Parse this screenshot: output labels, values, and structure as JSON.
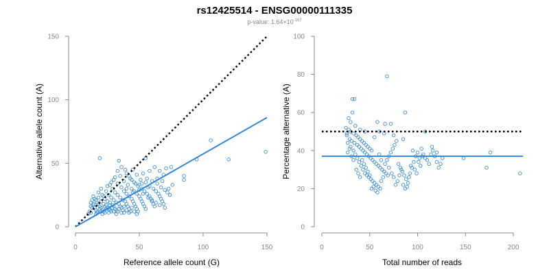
{
  "chart_data": [
    {
      "type": "scatter",
      "title": "rs12425514 - ENSG00000111335",
      "subtitle_prefix": "p-value: 1.64×10",
      "subtitle_exponent": "-167",
      "xlabel": "Reference allele count (G)",
      "ylabel": "Alternative allele count (A)",
      "xlim": [
        0,
        150
      ],
      "ylim": [
        0,
        150
      ],
      "xticks": [
        0,
        50,
        100,
        150
      ],
      "yticks": [
        0,
        50,
        100,
        150
      ],
      "reference_line": {
        "style": "dotted",
        "x": [
          0,
          150
        ],
        "y": [
          0,
          150
        ]
      },
      "fit_line": {
        "x": [
          0,
          150
        ],
        "y": [
          0,
          86
        ]
      },
      "points": [
        [
          12,
          11
        ],
        [
          13,
          21
        ],
        [
          12,
          19
        ],
        [
          14,
          17
        ],
        [
          15,
          15
        ],
        [
          16,
          13
        ],
        [
          17,
          12
        ],
        [
          15,
          22
        ],
        [
          16,
          21
        ],
        [
          18,
          18
        ],
        [
          19,
          16
        ],
        [
          20,
          15
        ],
        [
          21,
          13
        ],
        [
          22,
          12
        ],
        [
          23,
          11
        ],
        [
          18,
          23
        ],
        [
          20,
          20
        ],
        [
          22,
          18
        ],
        [
          24,
          17
        ],
        [
          25,
          15
        ],
        [
          26,
          14
        ],
        [
          27,
          13
        ],
        [
          28,
          12
        ],
        [
          21,
          25
        ],
        [
          23,
          22
        ],
        [
          25,
          20
        ],
        [
          27,
          19
        ],
        [
          29,
          17
        ],
        [
          30,
          16
        ],
        [
          31,
          14
        ],
        [
          32,
          13
        ],
        [
          33,
          12
        ],
        [
          24,
          28
        ],
        [
          26,
          25
        ],
        [
          28,
          23
        ],
        [
          30,
          21
        ],
        [
          32,
          19
        ],
        [
          34,
          18
        ],
        [
          35,
          16
        ],
        [
          36,
          15
        ],
        [
          37,
          13
        ],
        [
          38,
          11
        ],
        [
          27,
          33
        ],
        [
          29,
          30
        ],
        [
          31,
          27
        ],
        [
          33,
          25
        ],
        [
          35,
          23
        ],
        [
          37,
          21
        ],
        [
          39,
          20
        ],
        [
          40,
          18
        ],
        [
          41,
          16
        ],
        [
          42,
          14
        ],
        [
          43,
          12
        ],
        [
          30,
          37
        ],
        [
          33,
          34
        ],
        [
          36,
          31
        ],
        [
          38,
          28
        ],
        [
          40,
          26
        ],
        [
          42,
          24
        ],
        [
          44,
          22
        ],
        [
          45,
          20
        ],
        [
          46,
          18
        ],
        [
          47,
          16
        ],
        [
          48,
          14
        ],
        [
          49,
          12
        ],
        [
          35,
          40
        ],
        [
          38,
          36
        ],
        [
          41,
          33
        ],
        [
          44,
          30
        ],
        [
          46,
          28
        ],
        [
          48,
          26
        ],
        [
          50,
          24
        ],
        [
          51,
          22
        ],
        [
          52,
          20
        ],
        [
          53,
          18
        ],
        [
          54,
          16
        ],
        [
          55,
          14
        ],
        [
          40,
          42
        ],
        [
          43,
          38
        ],
        [
          46,
          35
        ],
        [
          49,
          32
        ],
        [
          52,
          30
        ],
        [
          54,
          28
        ],
        [
          56,
          26
        ],
        [
          58,
          24
        ],
        [
          59,
          22
        ],
        [
          60,
          20
        ],
        [
          61,
          18
        ],
        [
          62,
          16
        ],
        [
          45,
          45
        ],
        [
          48,
          41
        ],
        [
          51,
          37
        ],
        [
          55,
          35
        ],
        [
          58,
          32
        ],
        [
          61,
          30
        ],
        [
          63,
          28
        ],
        [
          65,
          26
        ],
        [
          66,
          24
        ],
        [
          67,
          22
        ],
        [
          68,
          20
        ],
        [
          69,
          18
        ],
        [
          50,
          33
        ],
        [
          56,
          38
        ],
        [
          60,
          36
        ],
        [
          64,
          34
        ],
        [
          67,
          31
        ],
        [
          70,
          29
        ],
        [
          72,
          27
        ],
        [
          74,
          25
        ],
        [
          73,
          30
        ],
        [
          76,
          33
        ],
        [
          69,
          41
        ],
        [
          66,
          44
        ],
        [
          71,
          46
        ],
        [
          75,
          47
        ],
        [
          62,
          47
        ],
        [
          58,
          44
        ],
        [
          53,
          42
        ],
        [
          19,
          54
        ],
        [
          34,
          52
        ],
        [
          55,
          54
        ],
        [
          85,
          40
        ],
        [
          85,
          37
        ],
        [
          95,
          53
        ],
        [
          106,
          68
        ],
        [
          120,
          53
        ],
        [
          149,
          59
        ],
        [
          10,
          10
        ],
        [
          11,
          12
        ],
        [
          13,
          15
        ],
        [
          14,
          18
        ],
        [
          16,
          10
        ],
        [
          17,
          11
        ],
        [
          19,
          14
        ],
        [
          20,
          12
        ],
        [
          21,
          10
        ],
        [
          23,
          16
        ],
        [
          24,
          14
        ],
        [
          26,
          11
        ],
        [
          27,
          17
        ],
        [
          29,
          15
        ],
        [
          30,
          12
        ],
        [
          32,
          10
        ],
        [
          34,
          14
        ],
        [
          36,
          11
        ],
        [
          38,
          16
        ],
        [
          40,
          13
        ],
        [
          42,
          11
        ],
        [
          44,
          15
        ],
        [
          46,
          12
        ],
        [
          48,
          10
        ],
        [
          25,
          32
        ],
        [
          28,
          35
        ],
        [
          31,
          39
        ],
        [
          33,
          44
        ],
        [
          36,
          47
        ],
        [
          39,
          45
        ],
        [
          42,
          40
        ],
        [
          44,
          37
        ],
        [
          47,
          34
        ],
        [
          50,
          29
        ],
        [
          53,
          26
        ],
        [
          57,
          23
        ],
        [
          60,
          21
        ],
        [
          63,
          19
        ],
        [
          66,
          17
        ],
        [
          70,
          15
        ],
        [
          18,
          27
        ],
        [
          20,
          30
        ],
        [
          22,
          24
        ],
        [
          14,
          24
        ],
        [
          12,
          16
        ],
        [
          17,
          19
        ],
        [
          40,
          30
        ],
        [
          45,
          27
        ],
        [
          52,
          34
        ],
        [
          57,
          31
        ],
        [
          64,
          38
        ],
        [
          68,
          36
        ]
      ]
    },
    {
      "type": "scatter",
      "xlabel": "Total number of reads",
      "ylabel": "Percentage alternative (A)",
      "xlim": [
        0,
        210
      ],
      "ylim": [
        0,
        100
      ],
      "xticks": [
        0,
        50,
        100,
        150,
        200
      ],
      "yticks": [
        0,
        20,
        40,
        60,
        80,
        100
      ],
      "reference_line": {
        "style": "dotted",
        "x": [
          0,
          210
        ],
        "y": [
          50,
          50
        ]
      },
      "fit_line": {
        "x": [
          0,
          210
        ],
        "y": [
          37,
          37
        ]
      },
      "points": [
        [
          68,
          79
        ],
        [
          32,
          67
        ],
        [
          34,
          67
        ],
        [
          87,
          60
        ],
        [
          32,
          60
        ],
        [
          58,
          55
        ],
        [
          66,
          54
        ],
        [
          72,
          54
        ],
        [
          108,
          50
        ],
        [
          25,
          52
        ],
        [
          28,
          51
        ],
        [
          30,
          50
        ],
        [
          33,
          49
        ],
        [
          36,
          48
        ],
        [
          38,
          47
        ],
        [
          40,
          46
        ],
        [
          42,
          45
        ],
        [
          44,
          44
        ],
        [
          46,
          43
        ],
        [
          48,
          42
        ],
        [
          50,
          41
        ],
        [
          52,
          40
        ],
        [
          26,
          48
        ],
        [
          29,
          46
        ],
        [
          31,
          45
        ],
        [
          34,
          44
        ],
        [
          37,
          43
        ],
        [
          39,
          42
        ],
        [
          41,
          41
        ],
        [
          43,
          40
        ],
        [
          45,
          39
        ],
        [
          47,
          38
        ],
        [
          49,
          37
        ],
        [
          51,
          36
        ],
        [
          53,
          35
        ],
        [
          55,
          34
        ],
        [
          57,
          33
        ],
        [
          59,
          32
        ],
        [
          61,
          31
        ],
        [
          63,
          30
        ],
        [
          65,
          29
        ],
        [
          67,
          28
        ],
        [
          69,
          27
        ],
        [
          27,
          44
        ],
        [
          30,
          42
        ],
        [
          33,
          40
        ],
        [
          35,
          38
        ],
        [
          37,
          36
        ],
        [
          39,
          34
        ],
        [
          41,
          32
        ],
        [
          43,
          30
        ],
        [
          45,
          28
        ],
        [
          47,
          27
        ],
        [
          49,
          26
        ],
        [
          51,
          25
        ],
        [
          53,
          24
        ],
        [
          55,
          23
        ],
        [
          57,
          22
        ],
        [
          59,
          21
        ],
        [
          61,
          20
        ],
        [
          36,
          30
        ],
        [
          38,
          28
        ],
        [
          40,
          26
        ],
        [
          42,
          35
        ],
        [
          44,
          33
        ],
        [
          46,
          31
        ],
        [
          48,
          29
        ],
        [
          50,
          27
        ],
        [
          52,
          20
        ],
        [
          54,
          21
        ],
        [
          56,
          19
        ],
        [
          58,
          18
        ],
        [
          62,
          24
        ],
        [
          64,
          26
        ],
        [
          66,
          33
        ],
        [
          68,
          35
        ],
        [
          70,
          37
        ],
        [
          72,
          39
        ],
        [
          74,
          41
        ],
        [
          76,
          43
        ],
        [
          78,
          45
        ],
        [
          80,
          33
        ],
        [
          82,
          31
        ],
        [
          84,
          29
        ],
        [
          86,
          27
        ],
        [
          88,
          25
        ],
        [
          90,
          23
        ],
        [
          92,
          28
        ],
        [
          94,
          31
        ],
        [
          96,
          34
        ],
        [
          98,
          37
        ],
        [
          100,
          39
        ],
        [
          102,
          36
        ],
        [
          104,
          41
        ],
        [
          106,
          38
        ],
        [
          108,
          36
        ],
        [
          110,
          35
        ],
        [
          112,
          33
        ],
        [
          114,
          38
        ],
        [
          116,
          40
        ],
        [
          118,
          37
        ],
        [
          120,
          34
        ],
        [
          122,
          31
        ],
        [
          124,
          33
        ],
        [
          126,
          36
        ],
        [
          95,
          40
        ],
        [
          60,
          38
        ],
        [
          62,
          35
        ],
        [
          70,
          31
        ],
        [
          73,
          28
        ],
        [
          75,
          26
        ],
        [
          77,
          22
        ],
        [
          79,
          24
        ],
        [
          81,
          27
        ],
        [
          83,
          30
        ],
        [
          85,
          22
        ],
        [
          87,
          20
        ],
        [
          89,
          21
        ],
        [
          91,
          26
        ],
        [
          93,
          32
        ],
        [
          97,
          30
        ],
        [
          99,
          28
        ],
        [
          101,
          34
        ],
        [
          103,
          32
        ],
        [
          105,
          37
        ],
        [
          60,
          50
        ],
        [
          65,
          49
        ],
        [
          75,
          48
        ],
        [
          85,
          46
        ],
        [
          55,
          47
        ],
        [
          45,
          50
        ],
        [
          40,
          51
        ],
        [
          35,
          53
        ],
        [
          30,
          55
        ],
        [
          28,
          57
        ],
        [
          26,
          49
        ],
        [
          31,
          37
        ],
        [
          33,
          35
        ],
        [
          27,
          39
        ],
        [
          29,
          41
        ],
        [
          148,
          36
        ],
        [
          172,
          31
        ],
        [
          176,
          39
        ],
        [
          207,
          28
        ],
        [
          115,
          42
        ],
        [
          120,
          39
        ]
      ]
    }
  ]
}
